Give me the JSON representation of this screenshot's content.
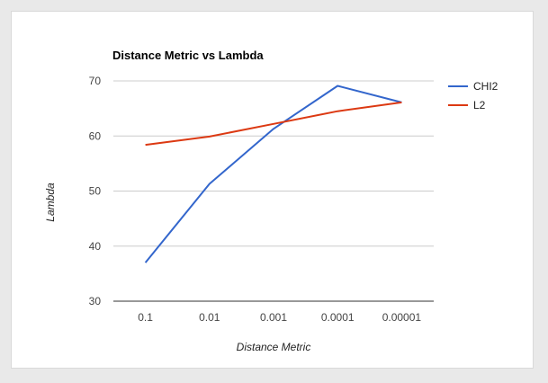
{
  "chart_data": {
    "type": "line",
    "title": "Distance Metric vs Lambda",
    "xlabel": "Distance Metric",
    "ylabel": "Lambda",
    "categories": [
      "0.1",
      "0.01",
      "0.001",
      "0.0001",
      "0.00001"
    ],
    "ylim": [
      30,
      70
    ],
    "yticks": [
      30,
      40,
      50,
      60,
      70
    ],
    "grid": true,
    "legend_position": "right",
    "series": [
      {
        "name": "CHI2",
        "color": "#3366cc",
        "values": [
          37,
          51.3,
          61.3,
          69.1,
          66.1
        ]
      },
      {
        "name": "L2",
        "color": "#dc3912",
        "values": [
          58.4,
          59.9,
          62.2,
          64.5,
          66.1
        ]
      }
    ]
  }
}
